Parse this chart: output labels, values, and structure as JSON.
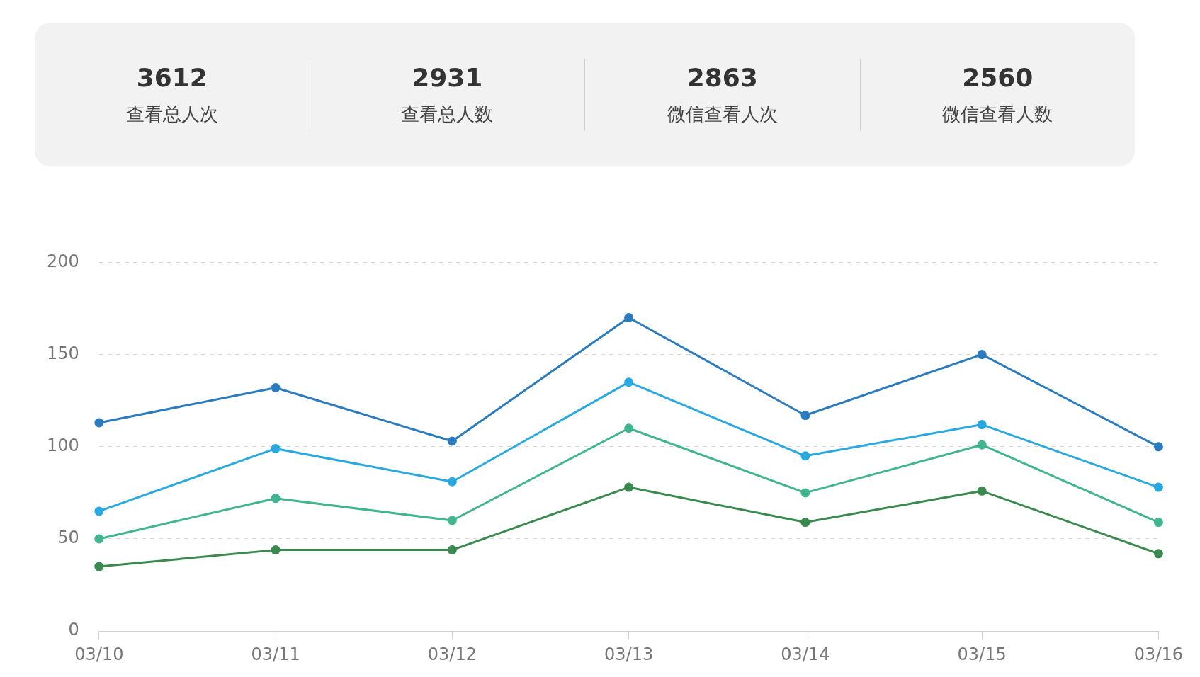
{
  "chart_data": [
    {
      "type": "other",
      "categories": [
        "查看总人次",
        "查看总人数",
        "微信查看人次",
        "微信查看人数"
      ],
      "values": [
        3612,
        2931,
        2863,
        2560
      ],
      "data_labels": true
    },
    {
      "type": "line",
      "categories": [
        "03/10",
        "03/11",
        "03/12",
        "03/13",
        "03/14",
        "03/15",
        "03/16"
      ],
      "series": [
        {
          "color": "#2b7bbf",
          "values": [
            113,
            132,
            103,
            170,
            117,
            150,
            100
          ]
        },
        {
          "color": "#29a9df",
          "values": [
            65,
            99,
            81,
            135,
            95,
            112,
            78
          ]
        },
        {
          "color": "#40b58f",
          "values": [
            50,
            72,
            60,
            110,
            75,
            101,
            59
          ]
        },
        {
          "color": "#3a8a4f",
          "values": [
            35,
            44,
            44,
            78,
            59,
            76,
            42
          ]
        }
      ],
      "ylim": [
        0,
        200
      ],
      "yticks": [
        0,
        50,
        100,
        150,
        200
      ],
      "grid": "y",
      "marker": "circle",
      "line_style": "solid"
    }
  ]
}
